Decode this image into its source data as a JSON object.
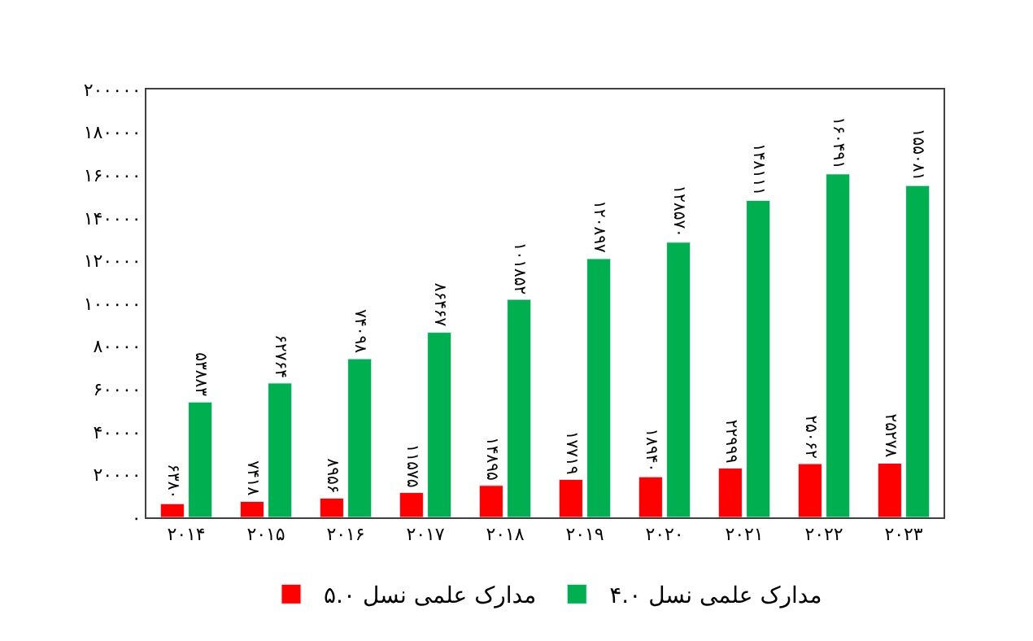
{
  "chart_data": {
    "type": "bar",
    "categories": [
      "۲۰۱۴",
      "۲۰۱۵",
      "۲۰۱۶",
      "۲۰۱۷",
      "۲۰۱۸",
      "۲۰۱۹",
      "۲۰۲۰",
      "۲۰۲۱",
      "۲۰۲۲",
      "۲۰۲۳"
    ],
    "series": [
      {
        "name": "مدارک علمی نسل ۵.۰",
        "color": "#ff0000",
        "values": [
          6380,
          7418,
          8956,
          11575,
          14895,
          17719,
          18940,
          22999,
          25062,
          25278
        ],
        "value_labels": [
          "۶۳۸۰",
          "۷۴۱۸",
          "۸۹۵۶",
          "۱۱۵۷۵",
          "۱۴۸۹۵",
          "۱۷۷۱۹",
          "۱۸۹۴۰",
          "۲۲۹۹۹",
          "۲۵۰۶۲",
          "۲۵۲۷۸"
        ]
      },
      {
        "name": "مدارک علمی نسل ۴.۰",
        "color": "#00b050",
        "values": [
          53883,
          62764,
          74098,
          86467,
          101852,
          120897,
          128570,
          148111,
          160491,
          155081
        ],
        "value_labels": [
          "۵۳۸۸۳",
          "۶۲۷۶۴",
          "۷۴۰۹۸",
          "۸۶۴۶۷",
          "۱۰۱۸۵۲",
          "۱۲۰۸۹۷",
          "۱۲۸۵۷۰",
          "۱۴۸۱۱۱",
          "۱۶۰۴۹۱",
          "۱۵۵۰۸۱"
        ]
      }
    ],
    "ylim": [
      0,
      200000
    ],
    "yticks": [
      {
        "value": 0,
        "label": "۰"
      },
      {
        "value": 20000,
        "label": "۲۰۰۰۰"
      },
      {
        "value": 40000,
        "label": "۴۰۰۰۰"
      },
      {
        "value": 60000,
        "label": "۶۰۰۰۰"
      },
      {
        "value": 80000,
        "label": "۸۰۰۰۰"
      },
      {
        "value": 100000,
        "label": "۱۰۰۰۰۰"
      },
      {
        "value": 120000,
        "label": "۱۲۰۰۰۰"
      },
      {
        "value": 140000,
        "label": "۱۴۰۰۰۰"
      },
      {
        "value": 160000,
        "label": "۱۶۰۰۰۰"
      },
      {
        "value": 180000,
        "label": "۱۸۰۰۰۰"
      },
      {
        "value": 200000,
        "label": "۲۰۰۰۰۰"
      }
    ],
    "legend": "bottom"
  }
}
